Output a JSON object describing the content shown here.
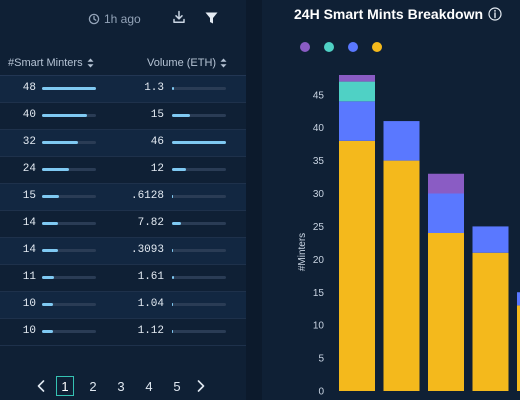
{
  "toolbar": {
    "updated": "1h ago"
  },
  "table": {
    "headers": {
      "minters": "#Smart Minters",
      "volume": "Volume (ETH)"
    },
    "rows": [
      {
        "minters": "48",
        "minters_frac": 1.0,
        "volume": "1.3",
        "volume_frac": 0.03
      },
      {
        "minters": "40",
        "minters_frac": 0.83,
        "volume": "15",
        "volume_frac": 0.33
      },
      {
        "minters": "32",
        "minters_frac": 0.67,
        "volume": "46",
        "volume_frac": 1.0
      },
      {
        "minters": "24",
        "minters_frac": 0.5,
        "volume": "12",
        "volume_frac": 0.26
      },
      {
        "minters": "15",
        "minters_frac": 0.31,
        "volume": ".6128",
        "volume_frac": 0.01
      },
      {
        "minters": "14",
        "minters_frac": 0.29,
        "volume": "7.82",
        "volume_frac": 0.17
      },
      {
        "minters": "14",
        "minters_frac": 0.29,
        "volume": ".3093",
        "volume_frac": 0.01
      },
      {
        "minters": "11",
        "minters_frac": 0.23,
        "volume": "1.61",
        "volume_frac": 0.035
      },
      {
        "minters": "10",
        "minters_frac": 0.21,
        "volume": "1.04",
        "volume_frac": 0.023
      },
      {
        "minters": "10",
        "minters_frac": 0.21,
        "volume": "1.12",
        "volume_frac": 0.024
      }
    ]
  },
  "pagination": {
    "pages": [
      "1",
      "2",
      "3",
      "4",
      "5"
    ],
    "current": "1"
  },
  "chart": {
    "title": "24H Smart Mints Breakdown"
  },
  "colors": {
    "purple": "#8a5cc4",
    "teal": "#4fd1c5",
    "blue": "#5a78ff",
    "yellow": "#f4b91c",
    "fill": "#7fc9f2",
    "accent": "#35c2b3"
  },
  "chart_data": {
    "type": "bar",
    "stacked": true,
    "title": "24H Smart Mints Breakdown",
    "xlabel": "",
    "ylabel": "#Minters",
    "ylim": [
      0,
      48
    ],
    "yticks": [
      0,
      5,
      10,
      15,
      20,
      25,
      30,
      35,
      40,
      45
    ],
    "grid": false,
    "legend": "top-left",
    "categories": [
      "",
      "",
      "",
      "",
      "",
      ""
    ],
    "series": [
      {
        "color": "#f4b91c",
        "values": [
          38,
          35,
          24,
          21,
          13,
          0
        ]
      },
      {
        "color": "#5a78ff",
        "values": [
          6,
          6,
          6,
          4,
          2,
          0
        ]
      },
      {
        "color": "#4fd1c5",
        "values": [
          3,
          0,
          0,
          0,
          0,
          0
        ]
      },
      {
        "color": "#8a5cc4",
        "values": [
          1,
          0,
          3,
          0,
          0,
          0
        ]
      }
    ]
  }
}
